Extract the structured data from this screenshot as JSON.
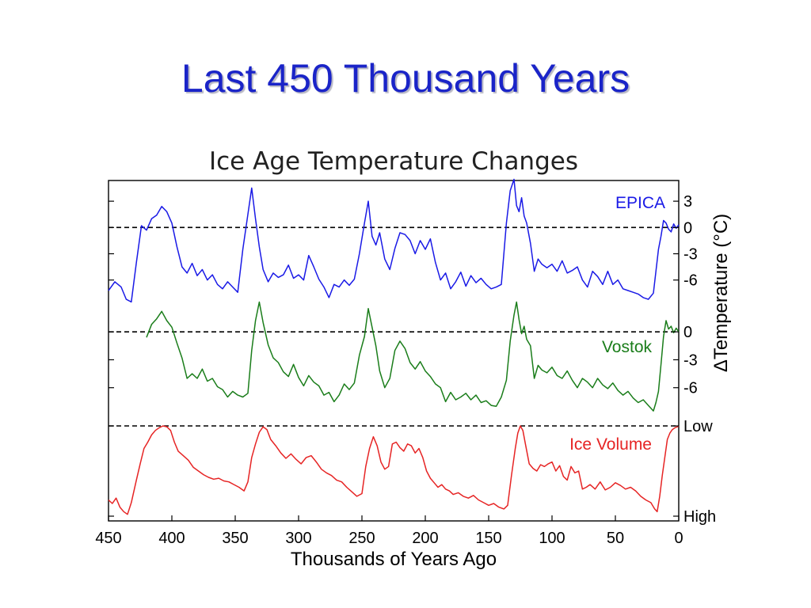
{
  "slide": {
    "title": "Last 450 Thousand Years"
  },
  "chart_data": {
    "type": "line",
    "title": "Ice Age Temperature Changes",
    "xlabel": "Thousands of Years Ago",
    "ylabel": "ΔTemperature (°C)",
    "xlim": [
      450,
      0
    ],
    "x_ticks": [
      "450",
      "400",
      "350",
      "300",
      "250",
      "200",
      "150",
      "100",
      "50",
      "0"
    ],
    "x_tick_values": [
      450,
      400,
      350,
      300,
      250,
      200,
      150,
      100,
      50,
      0
    ],
    "panels": [
      {
        "name": "EPICA",
        "color": "#1a1ae6",
        "unit": "°C",
        "ylim": [
          -10,
          5
        ],
        "y_ticks": [
          "3",
          "0",
          "-3",
          "-6"
        ],
        "y_tick_values": [
          3,
          0,
          -3,
          -6
        ],
        "series": {
          "name": "EPICA",
          "x": [
            450,
            445,
            440,
            436,
            432,
            428,
            424,
            420,
            416,
            412,
            408,
            404,
            400,
            396,
            392,
            388,
            384,
            380,
            376,
            372,
            368,
            364,
            360,
            356,
            352,
            348,
            344,
            340,
            337,
            334,
            331,
            328,
            324,
            320,
            316,
            312,
            308,
            304,
            300,
            296,
            292,
            288,
            284,
            280,
            276,
            272,
            268,
            264,
            260,
            256,
            252,
            248,
            245,
            242,
            239,
            236,
            232,
            228,
            224,
            220,
            216,
            212,
            208,
            204,
            200,
            196,
            192,
            188,
            184,
            180,
            176,
            172,
            168,
            164,
            160,
            156,
            152,
            148,
            144,
            140,
            136,
            133,
            130,
            128,
            126,
            124,
            122,
            120,
            117,
            114,
            111,
            108,
            104,
            100,
            96,
            92,
            88,
            84,
            80,
            76,
            72,
            68,
            64,
            60,
            56,
            52,
            48,
            44,
            40,
            36,
            32,
            28,
            24,
            20,
            18,
            16,
            14,
            12,
            10,
            8,
            6,
            4,
            2,
            0
          ],
          "values": [
            -7.2,
            -6.2,
            -6.8,
            -8.2,
            -8.5,
            -4.0,
            0.2,
            -0.3,
            1.0,
            1.4,
            2.4,
            1.8,
            0.5,
            -2.2,
            -4.5,
            -5.2,
            -4.1,
            -5.5,
            -4.8,
            -6.0,
            -5.4,
            -6.5,
            -7.0,
            -6.2,
            -6.8,
            -7.4,
            -2.5,
            1.5,
            4.5,
            1.0,
            -2.2,
            -4.8,
            -6.2,
            -5.2,
            -5.7,
            -5.4,
            -4.3,
            -5.8,
            -5.4,
            -6.0,
            -3.2,
            -4.5,
            -5.9,
            -6.8,
            -8.0,
            -6.5,
            -6.8,
            -6.0,
            -6.6,
            -5.9,
            -3.0,
            0.5,
            3.0,
            -1.0,
            -2.0,
            -0.6,
            -3.6,
            -4.8,
            -2.4,
            -0.6,
            -0.8,
            -1.5,
            -3.0,
            -1.5,
            -2.5,
            -1.3,
            -4.0,
            -6.0,
            -5.2,
            -7.0,
            -6.2,
            -5.1,
            -6.7,
            -5.5,
            -6.3,
            -5.8,
            -6.5,
            -7.0,
            -6.8,
            -6.5,
            0.5,
            4.2,
            5.5,
            2.5,
            1.8,
            3.4,
            1.3,
            0.5,
            -1.8,
            -5.0,
            -3.6,
            -4.2,
            -4.6,
            -4.2,
            -5.0,
            -3.8,
            -5.2,
            -4.9,
            -4.5,
            -6.0,
            -6.8,
            -5.0,
            -5.6,
            -6.5,
            -5.0,
            -6.5,
            -6.0,
            -7.0,
            -7.2,
            -7.4,
            -7.6,
            -8.0,
            -8.2,
            -7.5,
            -5.0,
            -2.5,
            -1.0,
            0.8,
            0.5,
            -0.2,
            -0.5,
            0.4,
            -0.1,
            0.3
          ]
        }
      },
      {
        "name": "Vostok",
        "color": "#1a7d1a",
        "unit": "°C",
        "ylim": [
          -9,
          3.5
        ],
        "y_ticks": [
          "0",
          "-3",
          "-6"
        ],
        "y_tick_values": [
          0,
          -3,
          -6
        ],
        "series": {
          "name": "Vostok",
          "x": [
            420,
            416,
            412,
            408,
            404,
            400,
            396,
            392,
            388,
            384,
            380,
            376,
            372,
            368,
            364,
            360,
            356,
            352,
            348,
            344,
            340,
            337,
            334,
            331,
            328,
            324,
            320,
            316,
            312,
            308,
            304,
            300,
            296,
            292,
            288,
            284,
            280,
            276,
            272,
            268,
            264,
            260,
            256,
            252,
            248,
            245,
            242,
            239,
            236,
            232,
            228,
            224,
            220,
            216,
            212,
            208,
            204,
            200,
            196,
            192,
            188,
            184,
            180,
            176,
            172,
            168,
            164,
            160,
            156,
            152,
            148,
            144,
            140,
            136,
            133,
            130,
            128,
            126,
            124,
            122,
            120,
            117,
            114,
            111,
            108,
            104,
            100,
            96,
            92,
            88,
            84,
            80,
            76,
            72,
            68,
            64,
            60,
            56,
            52,
            48,
            44,
            40,
            36,
            32,
            28,
            24,
            20,
            18,
            16,
            14,
            12,
            10,
            8,
            6,
            4,
            2,
            0
          ],
          "values": [
            -0.6,
            0.8,
            1.4,
            2.2,
            1.2,
            0.5,
            -1.2,
            -2.8,
            -5.0,
            -4.5,
            -5.0,
            -4.0,
            -5.3,
            -5.0,
            -5.9,
            -6.2,
            -7.0,
            -6.4,
            -6.8,
            -7.0,
            -6.6,
            -2.0,
            1.2,
            3.2,
            1.0,
            -1.4,
            -2.8,
            -3.3,
            -4.3,
            -4.8,
            -3.5,
            -4.9,
            -5.8,
            -4.7,
            -5.4,
            -5.8,
            -6.8,
            -6.5,
            -7.5,
            -6.8,
            -5.6,
            -6.2,
            -5.5,
            -2.5,
            -0.5,
            2.5,
            0.5,
            -1.5,
            -4.2,
            -6.0,
            -5.0,
            -2.0,
            -1.0,
            -1.8,
            -3.3,
            -4.0,
            -3.2,
            -4.2,
            -4.8,
            -5.6,
            -6.0,
            -7.5,
            -6.5,
            -7.3,
            -7.0,
            -6.6,
            -7.3,
            -6.8,
            -7.6,
            -7.4,
            -7.9,
            -8.0,
            -7.0,
            -5.2,
            -1.0,
            1.8,
            3.2,
            1.3,
            -0.2,
            0.6,
            -0.8,
            -1.5,
            -5.0,
            -3.6,
            -4.1,
            -4.4,
            -3.8,
            -4.7,
            -5.0,
            -4.2,
            -5.2,
            -6.0,
            -5.0,
            -5.4,
            -6.0,
            -5.0,
            -5.7,
            -6.1,
            -5.5,
            -6.3,
            -6.8,
            -6.4,
            -7.1,
            -7.6,
            -7.3,
            -7.9,
            -8.5,
            -7.6,
            -6.4,
            -3.5,
            -0.5,
            1.2,
            0.3,
            0.6,
            -0.1,
            0.4,
            0.0
          ]
        }
      },
      {
        "name": "Ice Volume",
        "color": "#e62424",
        "ylim": [
          0,
          1
        ],
        "y_ticks": [
          "Low",
          "High"
        ],
        "y_tick_values": [
          0,
          1
        ],
        "series": {
          "name": "Ice Volume",
          "x": [
            450,
            447,
            444,
            441,
            438,
            435,
            432,
            428,
            425,
            422,
            419,
            416,
            413,
            410,
            407,
            404,
            401,
            398,
            395,
            391,
            387,
            383,
            379,
            375,
            371,
            367,
            363,
            359,
            355,
            351,
            347,
            343,
            340,
            337,
            334,
            331,
            328,
            325,
            322,
            318,
            314,
            310,
            306,
            302,
            298,
            294,
            290,
            286,
            282,
            278,
            274,
            270,
            266,
            262,
            258,
            254,
            250,
            247,
            244,
            241,
            238,
            235,
            232,
            229,
            226,
            223,
            220,
            217,
            214,
            211,
            208,
            205,
            202,
            199,
            196,
            193,
            190,
            187,
            184,
            181,
            178,
            174,
            170,
            166,
            162,
            158,
            154,
            150,
            146,
            142,
            138,
            135,
            132,
            129,
            127,
            125,
            123,
            121,
            118,
            115,
            112,
            109,
            106,
            103,
            100,
            97,
            94,
            91,
            88,
            85,
            82,
            79,
            76,
            73,
            70,
            66,
            62,
            58,
            54,
            50,
            46,
            42,
            38,
            34,
            30,
            26,
            22,
            19,
            17,
            15,
            13,
            11,
            9,
            7,
            5,
            3,
            1,
            0
          ],
          "values": [
            0.82,
            0.86,
            0.8,
            0.9,
            0.95,
            0.98,
            0.85,
            0.6,
            0.42,
            0.25,
            0.18,
            0.1,
            0.05,
            0.02,
            0.0,
            0.01,
            0.05,
            0.18,
            0.28,
            0.33,
            0.38,
            0.46,
            0.5,
            0.54,
            0.57,
            0.59,
            0.58,
            0.61,
            0.62,
            0.65,
            0.68,
            0.72,
            0.62,
            0.35,
            0.2,
            0.07,
            0.01,
            0.04,
            0.15,
            0.22,
            0.3,
            0.36,
            0.31,
            0.37,
            0.42,
            0.35,
            0.33,
            0.4,
            0.48,
            0.52,
            0.55,
            0.6,
            0.62,
            0.68,
            0.73,
            0.78,
            0.75,
            0.45,
            0.25,
            0.12,
            0.22,
            0.4,
            0.48,
            0.45,
            0.2,
            0.18,
            0.24,
            0.28,
            0.2,
            0.22,
            0.3,
            0.25,
            0.35,
            0.5,
            0.58,
            0.63,
            0.68,
            0.65,
            0.7,
            0.72,
            0.76,
            0.74,
            0.78,
            0.8,
            0.77,
            0.82,
            0.85,
            0.88,
            0.86,
            0.9,
            0.92,
            0.88,
            0.55,
            0.25,
            0.08,
            0.0,
            0.05,
            0.2,
            0.42,
            0.47,
            0.5,
            0.43,
            0.45,
            0.42,
            0.4,
            0.5,
            0.44,
            0.56,
            0.6,
            0.45,
            0.52,
            0.5,
            0.7,
            0.68,
            0.65,
            0.7,
            0.62,
            0.71,
            0.68,
            0.63,
            0.66,
            0.7,
            0.68,
            0.72,
            0.78,
            0.82,
            0.85,
            0.92,
            0.95,
            0.78,
            0.55,
            0.35,
            0.15,
            0.08,
            0.04,
            0.02,
            0.01,
            0.0
          ]
        }
      }
    ]
  }
}
